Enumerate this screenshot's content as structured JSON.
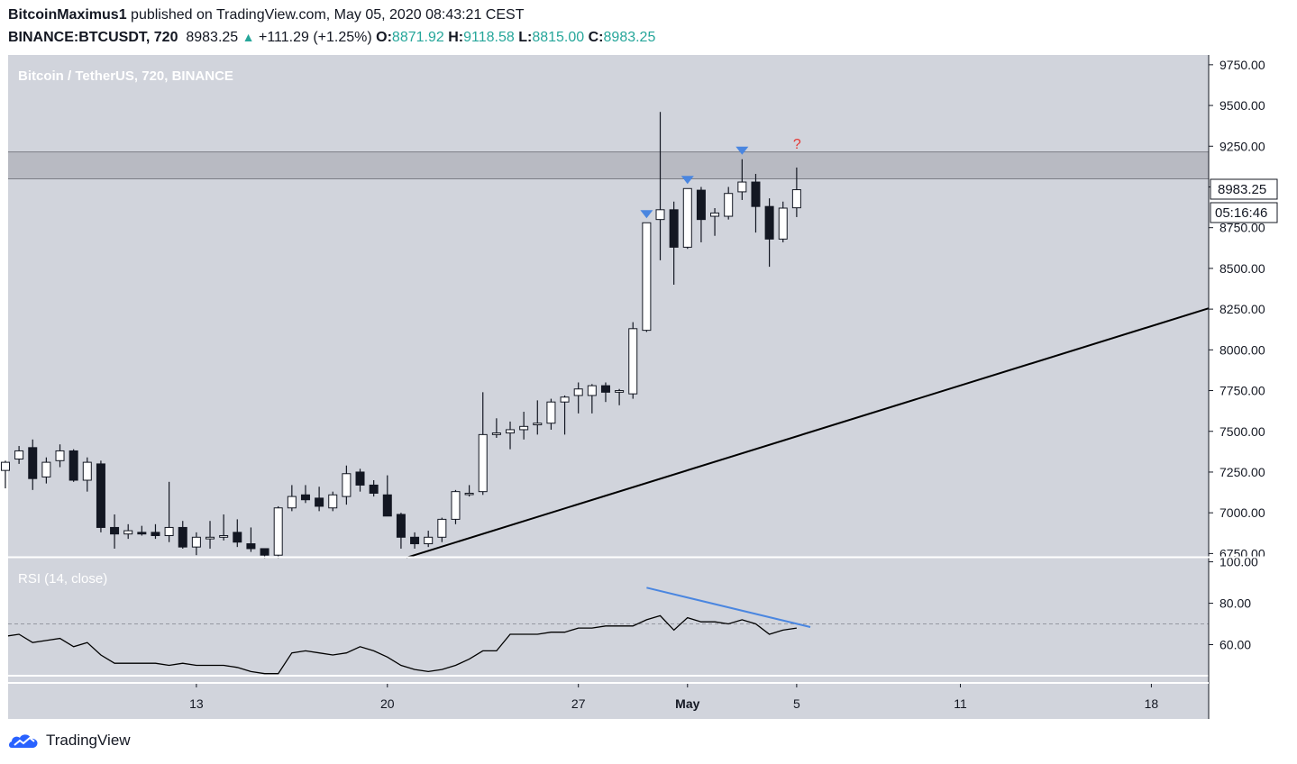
{
  "header": {
    "author": "BitcoinMaximus1",
    "published_text": "published on TradingView.com, May 05, 2020 08:43:21 CEST",
    "symbol": "BINANCE:BTCUSDT, 720",
    "last_price": "8983.25",
    "change": "+111.29 (+1.25%)",
    "open_label": "O:",
    "open": "8871.92",
    "high_label": "H:",
    "high": "9118.58",
    "low_label": "L:",
    "low": "8815.00",
    "close_label": "C:",
    "close": "8983.25"
  },
  "pane_title": "Bitcoin / TetherUS, 720, BINANCE",
  "rsi_title": "RSI (14, close)",
  "price_label": "8983.25",
  "countdown_label": "05:16:46",
  "question_mark": "?",
  "footer": {
    "brand": "TradingView"
  },
  "colors": {
    "pane_bg": "#d1d4dc",
    "resistance_zone": "#b8bac2",
    "bull_body": "#ffffff",
    "bear_body": "#131722",
    "wick": "#131722",
    "marker": "#4a86e0",
    "divergence": "#4a86e0",
    "question": "#e53935",
    "axis_text": "#131722"
  },
  "chart_data": [
    {
      "type": "candlestick",
      "title": "Bitcoin / TetherUS, 720, BINANCE",
      "y_ticks": [
        "9750.00",
        "9500.00",
        "9250.00",
        "9000.00",
        "8750.00",
        "8500.00",
        "8250.00",
        "8000.00",
        "7750.00",
        "7500.00",
        "7250.00",
        "7000.00",
        "6750.00"
      ],
      "y_range": [
        6730,
        9810
      ],
      "x_ticks": [
        {
          "label": "13",
          "day": 13
        },
        {
          "label": "20",
          "day": 20
        },
        {
          "label": "27",
          "day": 27
        },
        {
          "label": "May",
          "day": 31
        },
        {
          "label": "5",
          "day": 35
        },
        {
          "label": "11",
          "day": 41
        },
        {
          "label": "18",
          "day": 48
        }
      ],
      "x_range_days": [
        6.1,
        50.1
      ],
      "resistance_zone": [
        9050,
        9215
      ],
      "ascending_trendline": [
        {
          "day": 20.7,
          "price": 6725
        },
        {
          "day": 50.1,
          "price": 8255
        }
      ],
      "candles": [
        {
          "o": 7260,
          "h": 7320,
          "l": 7150,
          "c": 7310
        },
        {
          "o": 7330,
          "h": 7410,
          "l": 7300,
          "c": 7380
        },
        {
          "o": 7400,
          "h": 7450,
          "l": 7140,
          "c": 7210
        },
        {
          "o": 7220,
          "h": 7340,
          "l": 7180,
          "c": 7310
        },
        {
          "o": 7320,
          "h": 7420,
          "l": 7280,
          "c": 7380
        },
        {
          "o": 7380,
          "h": 7390,
          "l": 7190,
          "c": 7200
        },
        {
          "o": 7200,
          "h": 7340,
          "l": 7130,
          "c": 7310
        },
        {
          "o": 7300,
          "h": 7320,
          "l": 6880,
          "c": 6910
        },
        {
          "o": 6910,
          "h": 6990,
          "l": 6780,
          "c": 6870
        },
        {
          "o": 6870,
          "h": 6930,
          "l": 6840,
          "c": 6890
        },
        {
          "o": 6880,
          "h": 6920,
          "l": 6860,
          "c": 6870
        },
        {
          "o": 6880,
          "h": 6930,
          "l": 6840,
          "c": 6860
        },
        {
          "o": 6860,
          "h": 7190,
          "l": 6820,
          "c": 6910
        },
        {
          "o": 6910,
          "h": 6950,
          "l": 6780,
          "c": 6790
        },
        {
          "o": 6790,
          "h": 6880,
          "l": 6740,
          "c": 6850
        },
        {
          "o": 6840,
          "h": 6950,
          "l": 6780,
          "c": 6850
        },
        {
          "o": 6850,
          "h": 6990,
          "l": 6830,
          "c": 6860
        },
        {
          "o": 6880,
          "h": 6960,
          "l": 6790,
          "c": 6820
        },
        {
          "o": 6810,
          "h": 6910,
          "l": 6760,
          "c": 6780
        },
        {
          "o": 6780,
          "h": 6760,
          "l": 6720,
          "c": 6740
        },
        {
          "o": 6740,
          "h": 7040,
          "l": 6720,
          "c": 7030
        },
        {
          "o": 7030,
          "h": 7170,
          "l": 7010,
          "c": 7100
        },
        {
          "o": 7110,
          "h": 7170,
          "l": 7060,
          "c": 7080
        },
        {
          "o": 7090,
          "h": 7160,
          "l": 7010,
          "c": 7040
        },
        {
          "o": 7030,
          "h": 7130,
          "l": 7010,
          "c": 7110
        },
        {
          "o": 7100,
          "h": 7290,
          "l": 7050,
          "c": 7240
        },
        {
          "o": 7250,
          "h": 7270,
          "l": 7130,
          "c": 7170
        },
        {
          "o": 7170,
          "h": 7200,
          "l": 7100,
          "c": 7120
        },
        {
          "o": 7110,
          "h": 7230,
          "l": 6980,
          "c": 6980
        },
        {
          "o": 6990,
          "h": 7000,
          "l": 6780,
          "c": 6850
        },
        {
          "o": 6850,
          "h": 6880,
          "l": 6780,
          "c": 6810
        },
        {
          "o": 6810,
          "h": 6890,
          "l": 6790,
          "c": 6850
        },
        {
          "o": 6850,
          "h": 6970,
          "l": 6820,
          "c": 6960
        },
        {
          "o": 6960,
          "h": 7140,
          "l": 6930,
          "c": 7130
        },
        {
          "o": 7120,
          "h": 7170,
          "l": 7100,
          "c": 7120
        },
        {
          "o": 7130,
          "h": 7740,
          "l": 7110,
          "c": 7480
        },
        {
          "o": 7480,
          "h": 7580,
          "l": 7460,
          "c": 7490
        },
        {
          "o": 7490,
          "h": 7560,
          "l": 7390,
          "c": 7510
        },
        {
          "o": 7510,
          "h": 7620,
          "l": 7450,
          "c": 7530
        },
        {
          "o": 7540,
          "h": 7690,
          "l": 7480,
          "c": 7550
        },
        {
          "o": 7550,
          "h": 7700,
          "l": 7510,
          "c": 7680
        },
        {
          "o": 7680,
          "h": 7720,
          "l": 7480,
          "c": 7710
        },
        {
          "o": 7720,
          "h": 7800,
          "l": 7610,
          "c": 7760
        },
        {
          "o": 7720,
          "h": 7790,
          "l": 7610,
          "c": 7780
        },
        {
          "o": 7780,
          "h": 7800,
          "l": 7680,
          "c": 7740
        },
        {
          "o": 7740,
          "h": 7760,
          "l": 7660,
          "c": 7750
        },
        {
          "o": 7730,
          "h": 8170,
          "l": 7700,
          "c": 8130
        },
        {
          "o": 8120,
          "h": 8780,
          "l": 8110,
          "c": 8780
        },
        {
          "o": 8800,
          "h": 9460,
          "l": 8550,
          "c": 8860
        },
        {
          "o": 8860,
          "h": 8910,
          "l": 8400,
          "c": 8630
        },
        {
          "o": 8630,
          "h": 8990,
          "l": 8620,
          "c": 8990
        },
        {
          "o": 8980,
          "h": 9000,
          "l": 8660,
          "c": 8800
        },
        {
          "o": 8820,
          "h": 8870,
          "l": 8700,
          "c": 8840
        },
        {
          "o": 8820,
          "h": 9000,
          "l": 8800,
          "c": 8960
        },
        {
          "o": 8970,
          "h": 9170,
          "l": 8920,
          "c": 9030
        },
        {
          "o": 9030,
          "h": 9080,
          "l": 8720,
          "c": 8880
        },
        {
          "o": 8880,
          "h": 8930,
          "l": 8510,
          "c": 8680
        },
        {
          "o": 8680,
          "h": 8910,
          "l": 8660,
          "c": 8870
        },
        {
          "o": 8872,
          "h": 9119,
          "l": 8815,
          "c": 8983
        }
      ],
      "last_candle_time": "May 05, 2020",
      "bearish_markers_at_candle": [
        47,
        50,
        54
      ],
      "question_mark_at_candle": 58
    },
    {
      "type": "line",
      "title": "RSI (14, close)",
      "y_ticks": [
        "100.00",
        "80.00",
        "60.00"
      ],
      "y_range": [
        45,
        102
      ],
      "reference_level": 70,
      "values": [
        64,
        65,
        61,
        62,
        63,
        59,
        61,
        55,
        51,
        51,
        51,
        51,
        50,
        51,
        50,
        50,
        50,
        49,
        47,
        46,
        46,
        56,
        57,
        56,
        55,
        56,
        59,
        57,
        54,
        50,
        48,
        47,
        48,
        50,
        53,
        57,
        57,
        65,
        65,
        65,
        66,
        66,
        68,
        68,
        69,
        69,
        69,
        72,
        74,
        67,
        73,
        71,
        71,
        70,
        72,
        70,
        65,
        67,
        68
      ],
      "divergence_line": [
        {
          "candle": 47,
          "value": 87.5
        },
        {
          "candle": 59,
          "value": 68.5
        }
      ]
    }
  ]
}
